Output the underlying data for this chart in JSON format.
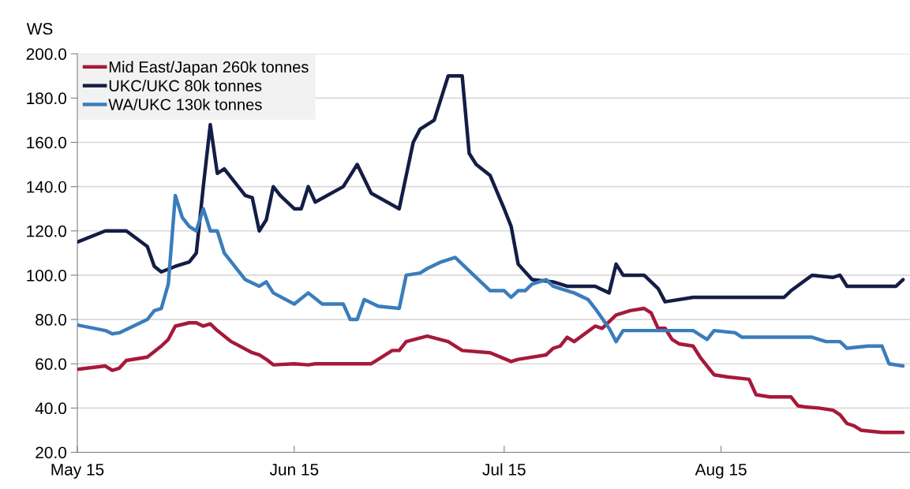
{
  "chart_data": {
    "type": "line",
    "ylabel": "WS",
    "xlim": [
      "2015-05-01",
      "2015-08-28"
    ],
    "xticks": [
      {
        "value": "2015-05-01",
        "label": "May 15"
      },
      {
        "value": "2015-06-01",
        "label": "Jun 15"
      },
      {
        "value": "2015-07-01",
        "label": "Jul 15"
      },
      {
        "value": "2015-08-01",
        "label": "Aug 15"
      }
    ],
    "ylim": [
      20,
      200
    ],
    "yticks": [
      {
        "value": 20,
        "label": "20.0"
      },
      {
        "value": 40,
        "label": "40.0"
      },
      {
        "value": 60,
        "label": "60.0"
      },
      {
        "value": 80,
        "label": "80.0"
      },
      {
        "value": 100,
        "label": "100.0"
      },
      {
        "value": 120,
        "label": "120.0"
      },
      {
        "value": 140,
        "label": "140.0"
      },
      {
        "value": 160,
        "label": "160.0"
      },
      {
        "value": 180,
        "label": "180.0"
      },
      {
        "value": 200,
        "label": "200.0"
      }
    ],
    "grid": "y",
    "legend": "top left",
    "marker": "none",
    "line_style": "solid",
    "series": [
      {
        "name": "Mid East/Japan 260k tonnes",
        "color": "#a6193a",
        "x": [
          "2015-05-01",
          "2015-05-05",
          "2015-05-06",
          "2015-05-07",
          "2015-05-08",
          "2015-05-11",
          "2015-05-13",
          "2015-05-14",
          "2015-05-15",
          "2015-05-17",
          "2015-05-18",
          "2015-05-19",
          "2015-05-20",
          "2015-05-21",
          "2015-05-23",
          "2015-05-26",
          "2015-05-27",
          "2015-05-28",
          "2015-05-29",
          "2015-06-01",
          "2015-06-03",
          "2015-06-04",
          "2015-06-12",
          "2015-06-13",
          "2015-06-15",
          "2015-06-16",
          "2015-06-17",
          "2015-06-20",
          "2015-06-23",
          "2015-06-25",
          "2015-06-29",
          "2015-07-02",
          "2015-07-03",
          "2015-07-07",
          "2015-07-08",
          "2015-07-09",
          "2015-07-10",
          "2015-07-11",
          "2015-07-14",
          "2015-07-15",
          "2015-07-16",
          "2015-07-17",
          "2015-07-19",
          "2015-07-21",
          "2015-07-22",
          "2015-07-23",
          "2015-07-24",
          "2015-07-25",
          "2015-07-26",
          "2015-07-28",
          "2015-07-29",
          "2015-07-30",
          "2015-07-31",
          "2015-08-02",
          "2015-08-05",
          "2015-08-06",
          "2015-08-08",
          "2015-08-11",
          "2015-08-12",
          "2015-08-13",
          "2015-08-15",
          "2015-08-17",
          "2015-08-18",
          "2015-08-19",
          "2015-08-20",
          "2015-08-21",
          "2015-08-24",
          "2015-08-27"
        ],
        "values": [
          57.5,
          59,
          57,
          58,
          61.5,
          63,
          68,
          71,
          77,
          78.5,
          78.5,
          77,
          78,
          75,
          70,
          65,
          64,
          62,
          59.5,
          60,
          59.5,
          60,
          60,
          62,
          66,
          66,
          70,
          72.5,
          70,
          66,
          65,
          61,
          62,
          64,
          67,
          68,
          72,
          70,
          77,
          76,
          79,
          82,
          84,
          85,
          83,
          76,
          76,
          71,
          69,
          68,
          63,
          59,
          55,
          54,
          53,
          46,
          45,
          45,
          41,
          40.5,
          40,
          39,
          37,
          33,
          32,
          30,
          29,
          29
        ]
      },
      {
        "name": "UKC/UKC 80k tonnes",
        "color": "#141d45",
        "x": [
          "2015-05-01",
          "2015-05-05",
          "2015-05-08",
          "2015-05-11",
          "2015-05-12",
          "2015-05-13",
          "2015-05-15",
          "2015-05-17",
          "2015-05-18",
          "2015-05-19",
          "2015-05-20",
          "2015-05-21",
          "2015-05-22",
          "2015-05-25",
          "2015-05-26",
          "2015-05-27",
          "2015-05-28",
          "2015-05-29",
          "2015-05-30",
          "2015-06-01",
          "2015-06-02",
          "2015-06-03",
          "2015-06-04",
          "2015-06-08",
          "2015-06-09",
          "2015-06-10",
          "2015-06-12",
          "2015-06-16",
          "2015-06-18",
          "2015-06-19",
          "2015-06-21",
          "2015-06-22",
          "2015-06-23",
          "2015-06-24",
          "2015-06-25",
          "2015-06-26",
          "2015-06-27",
          "2015-06-29",
          "2015-07-01",
          "2015-07-02",
          "2015-07-03",
          "2015-07-05",
          "2015-07-08",
          "2015-07-10",
          "2015-07-14",
          "2015-07-16",
          "2015-07-17",
          "2015-07-18",
          "2015-07-21",
          "2015-07-23",
          "2015-07-24",
          "2015-07-28",
          "2015-08-10",
          "2015-08-11",
          "2015-08-14",
          "2015-08-17",
          "2015-08-18",
          "2015-08-19",
          "2015-08-26",
          "2015-08-27"
        ],
        "values": [
          115,
          120,
          120,
          113,
          104,
          101.5,
          104,
          106,
          110,
          140,
          168,
          146,
          148,
          136,
          135,
          120,
          125,
          140,
          136,
          130,
          130,
          140,
          133,
          140,
          145,
          150,
          137,
          130,
          160,
          166,
          170,
          180,
          190,
          190,
          190,
          155,
          150,
          145,
          130,
          122,
          105,
          98,
          97,
          95,
          95,
          92,
          105,
          100,
          100,
          94,
          88,
          90,
          90,
          93,
          100,
          99,
          100,
          95,
          95,
          98
        ]
      },
      {
        "name": "WA/UKC 130k tonnes",
        "color": "#3a7dbb",
        "x": [
          "2015-05-01",
          "2015-05-05",
          "2015-05-06",
          "2015-05-07",
          "2015-05-09",
          "2015-05-11",
          "2015-05-12",
          "2015-05-13",
          "2015-05-14",
          "2015-05-15",
          "2015-05-16",
          "2015-05-17",
          "2015-05-18",
          "2015-05-19",
          "2015-05-20",
          "2015-05-21",
          "2015-05-22",
          "2015-05-25",
          "2015-05-27",
          "2015-05-28",
          "2015-05-29",
          "2015-06-01",
          "2015-06-03",
          "2015-06-05",
          "2015-06-08",
          "2015-06-09",
          "2015-06-10",
          "2015-06-11",
          "2015-06-13",
          "2015-06-16",
          "2015-06-17",
          "2015-06-19",
          "2015-06-20",
          "2015-06-22",
          "2015-06-24",
          "2015-06-26",
          "2015-06-29",
          "2015-07-01",
          "2015-07-02",
          "2015-07-03",
          "2015-07-04",
          "2015-07-05",
          "2015-07-07",
          "2015-07-08",
          "2015-07-09",
          "2015-07-11",
          "2015-07-13",
          "2015-07-14",
          "2015-07-16",
          "2015-07-17",
          "2015-07-18",
          "2015-07-22",
          "2015-07-24",
          "2015-07-28",
          "2015-07-30",
          "2015-07-31",
          "2015-08-03",
          "2015-08-04",
          "2015-08-14",
          "2015-08-16",
          "2015-08-18",
          "2015-08-19",
          "2015-08-22",
          "2015-08-24",
          "2015-08-25",
          "2015-08-27"
        ],
        "values": [
          77.5,
          75,
          73.5,
          74,
          77,
          80,
          84,
          85,
          96,
          136,
          126,
          122,
          120,
          130,
          120,
          120,
          110,
          98,
          95,
          97,
          92,
          87,
          92,
          87,
          87,
          80,
          80,
          89,
          86,
          85,
          100,
          101,
          103,
          106,
          108,
          102,
          93,
          93,
          90,
          93,
          93,
          96,
          98,
          95,
          94,
          92,
          89,
          85,
          76,
          70,
          75,
          75,
          75,
          75,
          71,
          75,
          74,
          72,
          72,
          70,
          70,
          67,
          68,
          68,
          60,
          59
        ]
      }
    ]
  }
}
